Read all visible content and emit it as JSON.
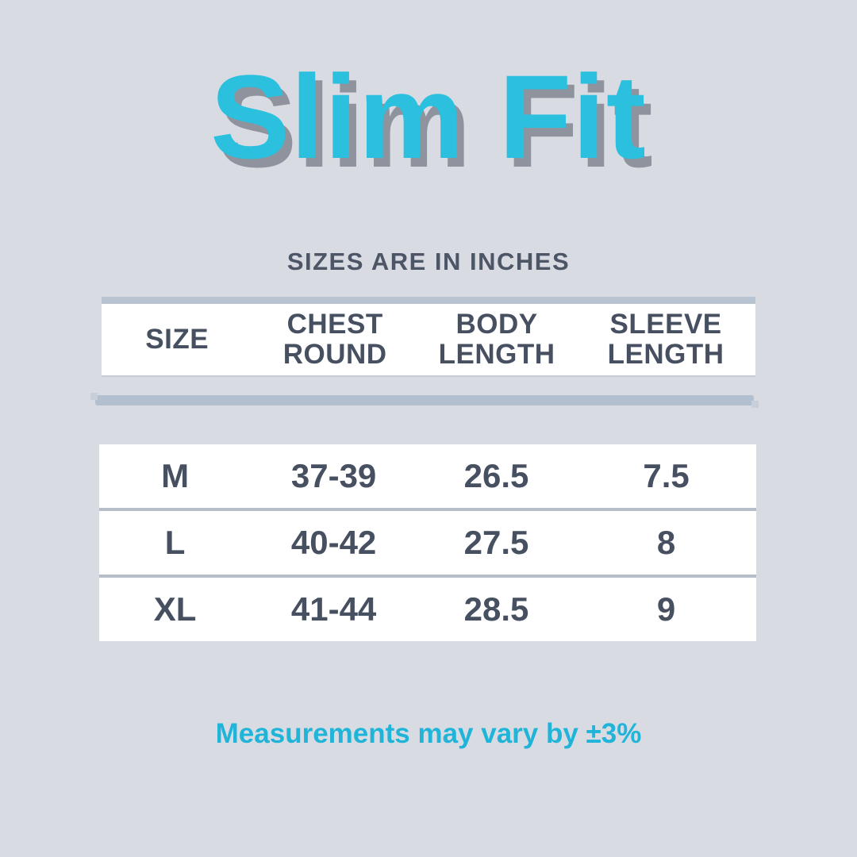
{
  "chart_data": {
    "type": "table",
    "title": "Slim Fit",
    "subtitle": "SIZES ARE IN INCHES",
    "units": "inches",
    "columns": [
      "SIZE",
      "CHEST ROUND",
      "BODY LENGTH",
      "SLEEVE LENGTH"
    ],
    "rows": [
      [
        "M",
        "37-39",
        26.5,
        7.5
      ],
      [
        "L",
        "40-42",
        27.5,
        8
      ],
      [
        "XL",
        "41-44",
        28.5,
        9
      ]
    ],
    "note": "Measurements may vary by ±3%"
  },
  "display": {
    "title": "Slim Fit",
    "subtitle": "SIZES ARE IN INCHES",
    "headers": [
      "SIZE",
      "CHEST\nROUND",
      "BODY\nLENGTH",
      "SLEEVE\nLENGTH"
    ],
    "rows": [
      [
        "M",
        "37-39",
        "26.5",
        "7.5"
      ],
      [
        "L",
        "40-42",
        "27.5",
        "8"
      ],
      [
        "XL",
        "41-44",
        "28.5",
        "9"
      ]
    ],
    "footer": "Measurements may vary by ±3%"
  },
  "colors": {
    "background": "#d9dbe3",
    "title_cyan": "#2ac0de",
    "title_shadow": "#8e939e",
    "footer_cyan": "#1fb4d8",
    "dark_text": "#475061",
    "header_strip": "#b8c3d2",
    "divider_bar": "#b2bfcf",
    "row_separator": "#b6bdc9",
    "surface": "#ffffff"
  }
}
